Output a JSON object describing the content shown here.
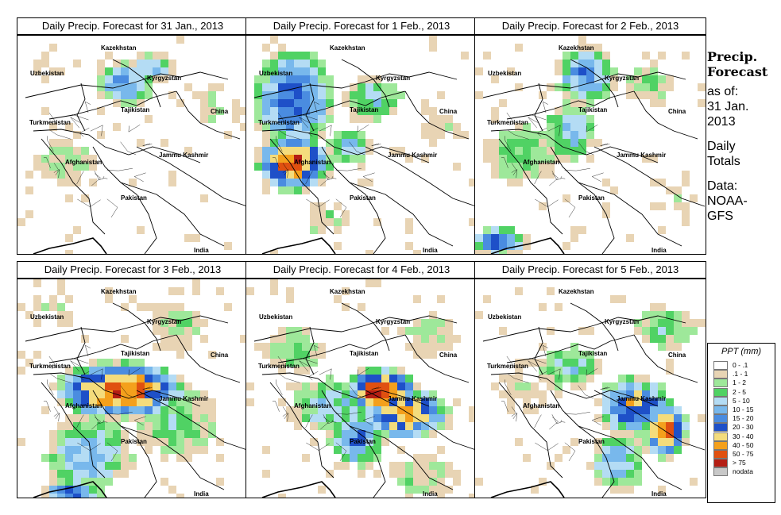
{
  "panels": [
    {
      "title": "Daily Precip. Forecast for  31 Jan., 2013",
      "date": "31 Jan."
    },
    {
      "title": "Daily Precip. Forecast for  1 Feb., 2013",
      "date": "1 Feb."
    },
    {
      "title": "Daily Precip. Forecast for  2 Feb., 2013",
      "date": "2 Feb."
    },
    {
      "title": "Daily Precip. Forecast for  3 Feb., 2013",
      "date": "3 Feb."
    },
    {
      "title": "Daily Precip. Forecast for  4 Feb., 2013",
      "date": "4 Feb."
    },
    {
      "title": "Daily Precip. Forecast for  5 Feb., 2013",
      "date": "5 Feb."
    }
  ],
  "map_labels": {
    "kazakhstan": "Kazekhstan",
    "uzbekistan": "Uzbekistan",
    "kyrgyzstan": "Kyrgyzstan",
    "tajikistan": "Tajikistan",
    "turkmenistan": "Turkmenistan",
    "china": "China",
    "afghanistan": "Afghanistan",
    "jammu_kashmir": "Jammu Kashmir",
    "pakistan": "Pakistan",
    "india": "India"
  },
  "side": {
    "heading_1": "Precip.",
    "heading_2": "Forecast",
    "as_of": "as of:",
    "date_1": "31 Jan.",
    "date_2": "2013",
    "totals_1": "Daily",
    "totals_2": "Totals",
    "data_1": "Data:",
    "data_2": "NOAA-",
    "data_3": "GFS"
  },
  "legend": {
    "title": "PPT (mm)",
    "items": [
      {
        "label": "0 - .1",
        "color": "#ffffff"
      },
      {
        "label": ".1 - 1",
        "color": "#e8d4b4"
      },
      {
        "label": "1 - 2",
        "color": "#9ee89a"
      },
      {
        "label": "2 - 5",
        "color": "#50d264"
      },
      {
        "label": "5 - 10",
        "color": "#b4dcf4"
      },
      {
        "label": "10 - 15",
        "color": "#78b8ec"
      },
      {
        "label": "15 - 20",
        "color": "#4a8ce0"
      },
      {
        "label": "20 - 30",
        "color": "#1e50c8"
      },
      {
        "label": "30 - 40",
        "color": "#f4dc7c"
      },
      {
        "label": "40 - 50",
        "color": "#f4a01c"
      },
      {
        "label": "50 - 75",
        "color": "#e05010"
      },
      {
        "label": "> 75",
        "color": "#b41e14"
      },
      {
        "label": "nodata",
        "color": "#c8c8c8"
      }
    ]
  }
}
